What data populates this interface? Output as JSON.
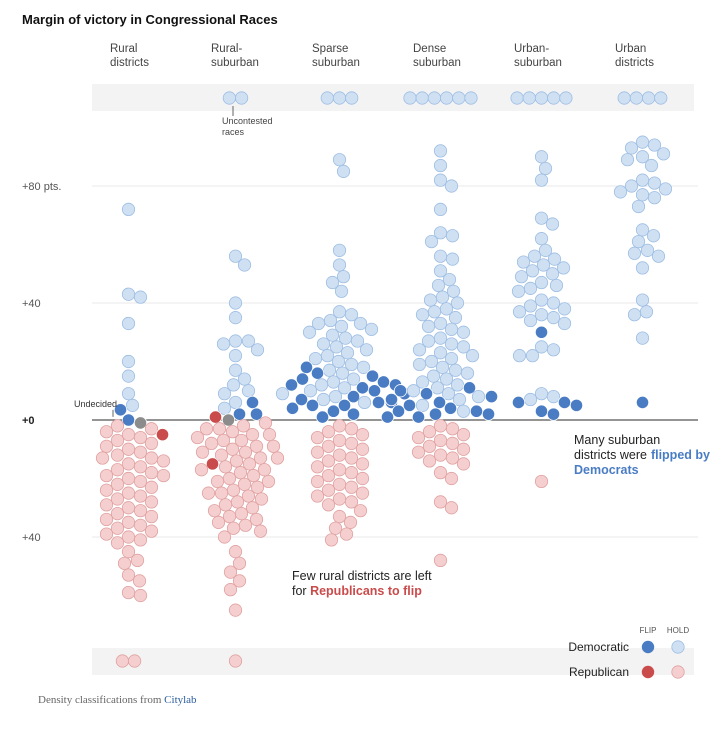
{
  "chart_data": {
    "type": "beeswarm",
    "title": "Margin of victory in Congressional Races",
    "categories": [
      [
        "Rural",
        "districts"
      ],
      [
        "Rural-",
        "suburban"
      ],
      [
        "Sparse",
        "suburban"
      ],
      [
        "Dense",
        "suburban"
      ],
      [
        "Urban-",
        "suburban"
      ],
      [
        "Urban",
        "districts"
      ]
    ],
    "ylim": [
      -70,
      100
    ],
    "yticks": [
      {
        "value": 80,
        "label": "+80 pts."
      },
      {
        "value": 40,
        "label": "+40"
      },
      {
        "value": 0,
        "label": "+0"
      },
      {
        "value": -40,
        "label": "+40"
      }
    ],
    "grid": true,
    "legend_labels": [
      "FLIP",
      "HOLD"
    ],
    "groups": [
      {
        "name": "Democratic",
        "flip_color": "#4a7cc4",
        "hold_color": "#cfe0f3",
        "uncontested": [
          0,
          2,
          3,
          6,
          5,
          4
        ],
        "flip": [
          [
            3.5,
            0
          ],
          [
            6,
            2,
            2
          ],
          [
            18,
            16,
            15,
            14,
            13,
            12,
            12,
            11,
            10,
            9,
            8,
            7,
            6,
            6,
            5,
            5,
            4,
            3,
            2,
            1
          ],
          [
            11,
            10,
            9,
            8,
            7,
            6,
            5,
            4,
            3,
            3,
            2,
            2,
            1,
            1
          ],
          [
            30,
            6,
            6,
            5,
            3,
            2
          ],
          [
            6
          ]
        ],
        "hold": [
          [
            72,
            43,
            42,
            33,
            20,
            15,
            9,
            5
          ],
          [
            56,
            53,
            40,
            35,
            27,
            27,
            26,
            24,
            22,
            17,
            14,
            12,
            10,
            9,
            6,
            4
          ],
          [
            89,
            85,
            58,
            53,
            49,
            47,
            44,
            37,
            36,
            34,
            33,
            33,
            32,
            31,
            30,
            29,
            28,
            27,
            26,
            25,
            24,
            23,
            22,
            21,
            20,
            19,
            18,
            17,
            16,
            14,
            13,
            12,
            11,
            10,
            9,
            8,
            7,
            6
          ],
          [
            92,
            87,
            82,
            80,
            72,
            64,
            63,
            61,
            56,
            55,
            51,
            48,
            46,
            44,
            42,
            41,
            40,
            38,
            37,
            36,
            35,
            33,
            32,
            31,
            30,
            28,
            27,
            26,
            25,
            24,
            23,
            22,
            21,
            20,
            19,
            18,
            17,
            16,
            15,
            14,
            13,
            12,
            11,
            10,
            9,
            8,
            7,
            5,
            3
          ],
          [
            90,
            86,
            82,
            69,
            67,
            62,
            58,
            56,
            55,
            54,
            53,
            52,
            51,
            50,
            49,
            47,
            46,
            45,
            44,
            41,
            40,
            39,
            38,
            37,
            36,
            35,
            34,
            33,
            25,
            24,
            22,
            22,
            9,
            8,
            7
          ],
          [
            95,
            94,
            93,
            91,
            90,
            89,
            87,
            82,
            81,
            80,
            79,
            78,
            77,
            76,
            73,
            65,
            63,
            61,
            58,
            57,
            56,
            52,
            41,
            37,
            36,
            28
          ]
        ]
      },
      {
        "name": "Republican",
        "flip_color": "#c94b4b",
        "hold_color": "#f5cfcf",
        "uncontested": [
          2,
          1,
          0,
          0,
          0,
          0
        ],
        "flip": [
          [
            -5
          ],
          [
            1,
            -15
          ],
          [],
          [],
          [],
          []
        ],
        "hold": [
          [
            -2,
            -3,
            -4,
            -5,
            -6,
            -7,
            -8,
            -9,
            -10,
            -11,
            -12,
            -13,
            -13,
            -14,
            -15,
            -16,
            -17,
            -18,
            -19,
            -19,
            -20,
            -21,
            -22,
            -23,
            -24,
            -25,
            -26,
            -27,
            -28,
            -29,
            -30,
            -31,
            -32,
            -33,
            -34,
            -35,
            -36,
            -37,
            -38,
            -39,
            -40,
            -41,
            -42,
            -45,
            -48,
            -49,
            -53,
            -55,
            -59,
            -60
          ],
          [
            -1,
            -2,
            -3,
            -3,
            -4,
            -5,
            -5,
            -6,
            -7,
            -7,
            -8,
            -9,
            -9,
            -10,
            -11,
            -11,
            -12,
            -13,
            -13,
            -14,
            -15,
            -16,
            -17,
            -17,
            -18,
            -19,
            -20,
            -21,
            -21,
            -22,
            -23,
            -24,
            -25,
            -25,
            -26,
            -27,
            -28,
            -29,
            -30,
            -31,
            -32,
            -33,
            -34,
            -35,
            -36,
            -37,
            -38,
            -40,
            -45,
            -49,
            -52,
            -55,
            -58,
            -65
          ],
          [
            -2,
            -3,
            -4,
            -5,
            -6,
            -7,
            -8,
            -9,
            -10,
            -11,
            -12,
            -13,
            -14,
            -15,
            -16,
            -17,
            -18,
            -19,
            -20,
            -21,
            -22,
            -23,
            -24,
            -25,
            -26,
            -27,
            -28,
            -29,
            -31,
            -33,
            -35,
            -37,
            -39,
            -41
          ],
          [
            -2,
            -3,
            -4,
            -5,
            -6,
            -7,
            -8,
            -9,
            -10,
            -11,
            -12,
            -13,
            -14,
            -15,
            -18,
            -20,
            -28,
            -30,
            -48
          ],
          [
            -21
          ],
          []
        ]
      }
    ],
    "undecided": {
      "label": "Undecided",
      "color": "#8c8c8c",
      "values": [
        [
          -1
        ],
        [
          0
        ],
        [],
        [],
        [],
        []
      ]
    },
    "annotations": {
      "uncontested": "Uncontested races",
      "suburban": {
        "text": "Many suburban districts were",
        "highlight": "flipped by Democrats"
      },
      "rural": {
        "text": "Few rural districts are left for",
        "highlight": "Republicans to flip"
      }
    },
    "source": {
      "text": "Density classifications from",
      "link": "Citylab"
    }
  }
}
